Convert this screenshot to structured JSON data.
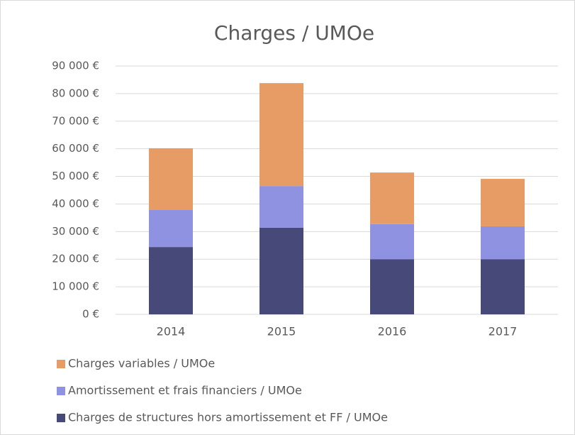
{
  "chart_data": {
    "type": "stacked_bar",
    "title": "Charges / UMOe",
    "categories": [
      "2014",
      "2015",
      "2016",
      "2017"
    ],
    "series": [
      {
        "name": "Charges de structures hors amortissement et FF / UMOe",
        "color": "#474a78",
        "values": [
          24400,
          31400,
          20000,
          20000
        ]
      },
      {
        "name": "Amortissement et frais financiers / UMOe",
        "color": "#8e92e0",
        "values": [
          13400,
          15100,
          12700,
          11900
        ]
      },
      {
        "name": "Charges variables / UMOe",
        "color": "#e89c65",
        "values": [
          22400,
          37300,
          18700,
          17200
        ]
      }
    ],
    "ylim": [
      0,
      90000
    ],
    "yticks": [
      {
        "value": 0,
        "label": "0 €"
      },
      {
        "value": 10000,
        "label": "10 000 €"
      },
      {
        "value": 20000,
        "label": "20 000 €"
      },
      {
        "value": 30000,
        "label": "30 000 €"
      },
      {
        "value": 40000,
        "label": "40 000 €"
      },
      {
        "value": 50000,
        "label": "50 000 €"
      },
      {
        "value": 60000,
        "label": "60 000 €"
      },
      {
        "value": 70000,
        "label": "70 000 €"
      },
      {
        "value": 80000,
        "label": "80 000 €"
      },
      {
        "value": 90000,
        "label": "90 000 €"
      }
    ],
    "grid": true
  }
}
